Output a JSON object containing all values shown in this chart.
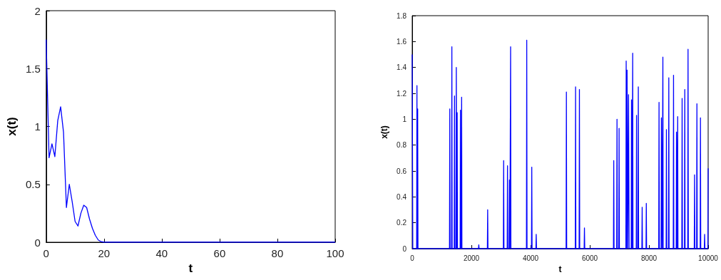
{
  "chart_data": [
    {
      "type": "line",
      "xlabel": "t",
      "ylabel": "x(t)",
      "xlim": [
        0,
        100
      ],
      "ylim": [
        0,
        2
      ],
      "xticks": [
        0,
        20,
        40,
        60,
        80,
        100
      ],
      "yticks": [
        0,
        0.5,
        1,
        1.5,
        2
      ],
      "grid": false,
      "marker": "none",
      "line_style": "solid",
      "series": [
        {
          "color": "#0000ff",
          "x": [
            0,
            1,
            2,
            3,
            4,
            5,
            6,
            7,
            8,
            9,
            10,
            11,
            12,
            13,
            14,
            15,
            16,
            17,
            18,
            19,
            20,
            100
          ],
          "values": [
            1.75,
            0.73,
            0.85,
            0.74,
            1.05,
            1.17,
            0.95,
            0.3,
            0.5,
            0.35,
            0.18,
            0.14,
            0.25,
            0.32,
            0.3,
            0.2,
            0.12,
            0.06,
            0.02,
            0.005,
            0,
            0
          ]
        }
      ]
    },
    {
      "type": "line",
      "xlabel": "t",
      "ylabel": "x(t)",
      "xlim": [
        0,
        10000
      ],
      "ylim": [
        0,
        1.8
      ],
      "xticks": [
        0,
        2000,
        4000,
        6000,
        8000,
        10000
      ],
      "yticks": [
        0,
        0.2,
        0.4,
        0.6,
        0.8,
        1,
        1.2,
        1.4,
        1.6,
        1.8
      ],
      "grid": false,
      "marker": "none",
      "line_style": "solid",
      "series": [
        {
          "color": "#0000ff",
          "x": [
            0,
            20,
            150,
            160,
            172,
            185,
            195,
            1260,
            1270,
            1280,
            1330,
            1340,
            1350,
            1420,
            1430,
            1440,
            1480,
            1490,
            1505,
            1520,
            1530,
            1620,
            1630,
            1640,
            1660,
            1670,
            1680,
            2240,
            2250,
            2260,
            2540,
            2550,
            2560,
            3080,
            3090,
            3100,
            3210,
            3220,
            3230,
            3275,
            3285,
            3300,
            3315,
            3325,
            3335,
            3860,
            3870,
            3880,
            4030,
            4040,
            4050,
            4180,
            4190,
            4200,
            5200,
            5210,
            5220,
            5510,
            5520,
            5530,
            5640,
            5650,
            5660,
            5810,
            5820,
            5830,
            6800,
            6810,
            6820,
            6910,
            6920,
            6930,
            6980,
            6990,
            7000,
            7220,
            7230,
            7245,
            7260,
            7285,
            7310,
            7330,
            7400,
            7410,
            7430,
            7450,
            7460,
            7570,
            7580,
            7590,
            7630,
            7640,
            7650,
            7760,
            7770,
            7780,
            7900,
            7910,
            7920,
            8330,
            8340,
            8350,
            8410,
            8420,
            8445,
            8470,
            8480,
            8580,
            8590,
            8600,
            8660,
            8670,
            8680,
            8820,
            8830,
            8840,
            8920,
            8930,
            8950,
            8970,
            8980,
            9110,
            9120,
            9130,
            9200,
            9210,
            9220,
            9310,
            9320,
            9330,
            9530,
            9540,
            9550,
            9610,
            9620,
            9630,
            9730,
            9740,
            9750,
            9870,
            9880,
            9890,
            9990,
            10000
          ],
          "values": [
            1.5,
            0,
            0,
            1.26,
            0,
            1.08,
            0,
            0,
            1.08,
            0,
            0,
            1.56,
            0,
            0,
            1.18,
            0,
            0,
            1.4,
            0,
            1.05,
            0,
            0,
            1.07,
            0,
            0,
            1.17,
            0,
            0,
            0.03,
            0,
            0,
            0.3,
            0,
            0,
            0.68,
            0,
            0,
            0.64,
            0,
            0,
            0.53,
            0,
            0,
            1.56,
            0,
            0,
            1.61,
            0,
            0,
            0.63,
            0,
            0,
            0.11,
            0,
            0,
            1.21,
            0,
            0,
            1.25,
            0,
            0,
            1.23,
            0,
            0,
            0.16,
            0,
            0,
            0.68,
            0,
            0,
            1.0,
            0,
            0,
            0.93,
            0,
            0,
            1.45,
            0,
            1.38,
            0,
            1.19,
            0,
            0,
            1.15,
            0,
            1.51,
            0,
            0,
            1.03,
            0,
            0,
            1.25,
            0,
            0,
            0.32,
            0,
            0,
            0.35,
            0,
            0,
            1.13,
            0,
            0,
            1.01,
            0,
            1.48,
            0,
            0,
            0.92,
            0,
            0,
            1.32,
            0,
            0,
            1.34,
            0,
            0,
            0.9,
            0,
            1.02,
            0,
            0,
            1.16,
            0,
            0,
            1.23,
            0,
            0,
            1.54,
            0,
            0,
            0.57,
            0,
            0,
            1.12,
            0,
            0,
            1.01,
            0,
            0,
            0.11,
            0,
            0,
            0.62
          ]
        }
      ]
    }
  ]
}
